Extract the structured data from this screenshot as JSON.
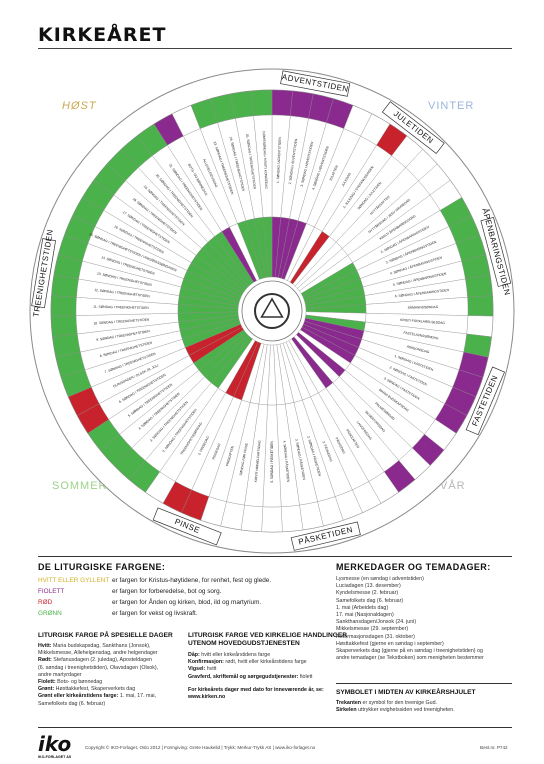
{
  "title": "KIRKEÅRET",
  "seasons": {
    "host": "HØST",
    "vinter": "VINTER",
    "sommer": "SOMMER",
    "var": "VÅR"
  },
  "colors": {
    "green": "#4bb24b",
    "purple": "#8b2a8e",
    "red": "#c8232c",
    "white": "#ffffff",
    "ring": "#8a8a8a"
  },
  "periods": [
    "ADVENTSTIDEN",
    "JULETIDEN",
    "ÅPENBARINGSTIDEN",
    "FASTETIDEN",
    "PÅSKETIDEN",
    "PINSE",
    "TREENIGHETSTIDEN"
  ],
  "days": [
    "1. SØNDAG I ADVENTSTIDEN",
    "2. SØNDAG I ADVENTSTIDEN",
    "3. SØNDAG I ADVENTSTIDEN",
    "4. SØNDAG I ADVENTSTIDEN",
    "JULAFTEN",
    "JULEDAG",
    "2. JULEDAG / STEFANUSDAGEN",
    "SØNDAG I JULETIDEN",
    "NYTTÅRSAFTEN",
    "NYTTÅRSDAG / JESU NAVNEDAG",
    "KRISTI ÅPENBARINGSDAG",
    "2. SØNDAG I ÅPENBARINGSTIDEN",
    "3. SØNDAG I ÅPENBARINGSTIDEN",
    "4. SØNDAG I ÅPENBARINGSTIDEN",
    "5. SØNDAG I ÅPENBARINGSTIDEN",
    "6. SØNDAG I ÅPENBARINGSTIDEN",
    "SÅMANNSSØNDAG",
    "KRISTI FORKLARELSESDAG",
    "FASTELAVNSSØNDAG",
    "ASKEONSDAG",
    "1. SØNDAG I FASTETIDEN",
    "2. SØNDAG I FASTETIDEN",
    "3. SØNDAG I FASTETIDEN",
    "MARIA BUDSKAPSDAG",
    "PALMESØNDAG",
    "SKJÆRTORSDAG",
    "LANGFREDAG",
    "PÅSKEAFTEN",
    "PÅSKEDAG",
    "2. PÅSKEDAG",
    "2. SØNDAG I PÅSKETIDEN",
    "3. SØNDAG I PÅSKETIDEN",
    "4. SØNDAG I PÅSKETIDEN",
    "5. SØNDAG I PÅSKETIDEN",
    "KRISTI HIMMELFARTSDAG",
    "SØNDAG FØR PINSE",
    "PINSEAFTEN",
    "PINSEDAG",
    "2. PINSEDAG",
    "TREENIGHETSSØNDAG",
    "2. SØNDAG I TREENIGHETSTIDEN",
    "3. SØNDAG I TREENIGHETSTIDEN",
    "4. SØNDAG I TREENIGHETSTIDEN",
    "5. SØNDAG I TREENIGHETSTIDEN",
    "6. SØNDAG I TREENIGHETSTIDEN",
    "OLAVSDAGEN / OLSOK 29. JULI",
    "7. SØNDAG I TREENIGHETSTIDEN",
    "8. SØNDAG I TREENIGHETSTIDEN",
    "9. SØNDAG I TREENIGHETSTIDEN",
    "10. SØNDAG I TREENIGHETSTIDEN",
    "11. SØNDAG I TREENIGHETSTIDEN",
    "12. SØNDAG I TREENIGHETSTIDEN",
    "13. SØNDAG I TREENIGHETSTIDEN",
    "14. SØNDAG I TREENIGHETSTIDEN",
    "15. SØNDAG I TREENIGHETSTIDEN / VINGÅRDSSØNDAGEN",
    "16. SØNDAG I TREENIGHETSTIDEN",
    "17. SØNDAG I TREENIGHETSTIDEN",
    "18. SØNDAG I TREENIGHETSTIDEN",
    "19. SØNDAG I TREENIGHETSTIDEN",
    "20. SØNDAG I TREENIGHETSTIDEN",
    "21. SØNDAG I TREENIGHETSTIDEN",
    "BOTS- OG BØNNEDAG",
    "ALLEHELGENSDAG",
    "23. SØNDAG I TREENIGHETSTIDEN",
    "24. SØNDAG I TREENIGHETSTIDEN",
    "25. SØNDAG I TREENIGHETSTIDEN",
    "DOMSSØNDAG / KRISTI KONGEDAG"
  ],
  "legend": {
    "heading": "DE LITURGISKE FARGENE:",
    "rows": [
      {
        "name": "HVITT ELLER GYLLENT",
        "text": "er fargen for Kristus-høytidene, for renhet, fest og glede.",
        "color": "#d3b12a"
      },
      {
        "name": "FIOLETT",
        "text": "er fargen for forberedelse, bot og sorg.",
        "color": "#8b2a8e"
      },
      {
        "name": "RØD",
        "text": "er fargen for Ånden og kirken, blod, ild og martyrium.",
        "color": "#c8232c"
      },
      {
        "name": "GRØNN",
        "text": "er fargen for vekst og livskraft.",
        "color": "#4bb24b"
      }
    ]
  },
  "special": {
    "heading": "LITURGISK FARGE PÅ SPESIELLE DAGER",
    "lines": [
      {
        "b": "Hvitt:",
        "t": " Maria budskapsdag, Sankthans (Jonsok),"
      },
      {
        "b": "",
        "t": "Mikkelsmesse, Allehelgensdag, andre helgendager"
      },
      {
        "b": "Rødt:",
        "t": " Stefanusdagen (2. juledag), Aposteldagen"
      },
      {
        "b": "",
        "t": "(6. søndag i treenighetstiden), Olavsdagen (Olsok),"
      },
      {
        "b": "",
        "t": "andre martyrdager"
      },
      {
        "b": "Fiolett:",
        "t": " Bots- og bønnedag"
      },
      {
        "b": "Grønt:",
        "t": " Høsttakkefest, Skaperverkets dag"
      },
      {
        "b": "Grønt eller kirkeårstidens farge:",
        "t": " 1. mai, 17. mai,"
      },
      {
        "b": "",
        "t": "Samefolkets dag (6. februar)"
      }
    ]
  },
  "actions": {
    "heading1": "LITURGISK FARGE VED KIRKELIGE HANDLINGER",
    "heading2": "UTENOM HOVEDGUDSTJENESTEN",
    "lines": [
      {
        "b": "Dåp:",
        "t": " hvitt eller kirkeårstidens farge"
      },
      {
        "b": "Konfirmasjon:",
        "t": " rødt, hvitt eller kirkeårstidens farge"
      },
      {
        "b": "Vigsel:",
        "t": " hvitt"
      },
      {
        "b": "Gravferd, skriftemål og sørgegudstjenester:",
        "t": " fiolett"
      }
    ],
    "note1": "For kirkeårets dager med dato for inneværende år, se:",
    "note2": "www.kirken.no"
  },
  "merkedager": {
    "heading": "MERKEDAGER OG TEMADAGER:",
    "items": [
      "Lysmesse (en søndag i adventstiden)",
      "Luciadagen (13. desember)",
      "Kyndelsmesse (2. februar)",
      "Samefolkets dag (6. februar)",
      "1. mai (Arbeidets dag)",
      "17. mai (Nasjonaldagen)",
      "Sankthansdagen/Jonsok (24. juni)",
      "Mikkelsmesse (29. september)",
      "Reformasjonsdagen (31. oktober)",
      "Høsttakkefest (gjerne en søndag i september)",
      "Skaperverkets dag (gjerne på en søndag i treenighetstiden) og",
      "andre temadager (se Tekstboken) som menigheten bestemmer"
    ]
  },
  "symbol": {
    "heading": "SYMBOLET I MIDTEN AV KIRKEÅRSHJULET",
    "l1b": "Trekanten",
    "l1t": " er symbol for den treenige Gud.",
    "l2b": "Sirkelen",
    "l2t": " uttrykker evighetssiden ved treenigheten."
  },
  "footer": {
    "logo": "iko",
    "logo_sub": "IKO-FORLAGET AS",
    "copyright": "Copyright © IKO-Forlaget, Oslo 2012 | Formgiving: Grete Haukelid | Trykk: Merkur-Trykk AS | www.iko-forlaget.no",
    "bestnr": "Best.nr. P742"
  }
}
